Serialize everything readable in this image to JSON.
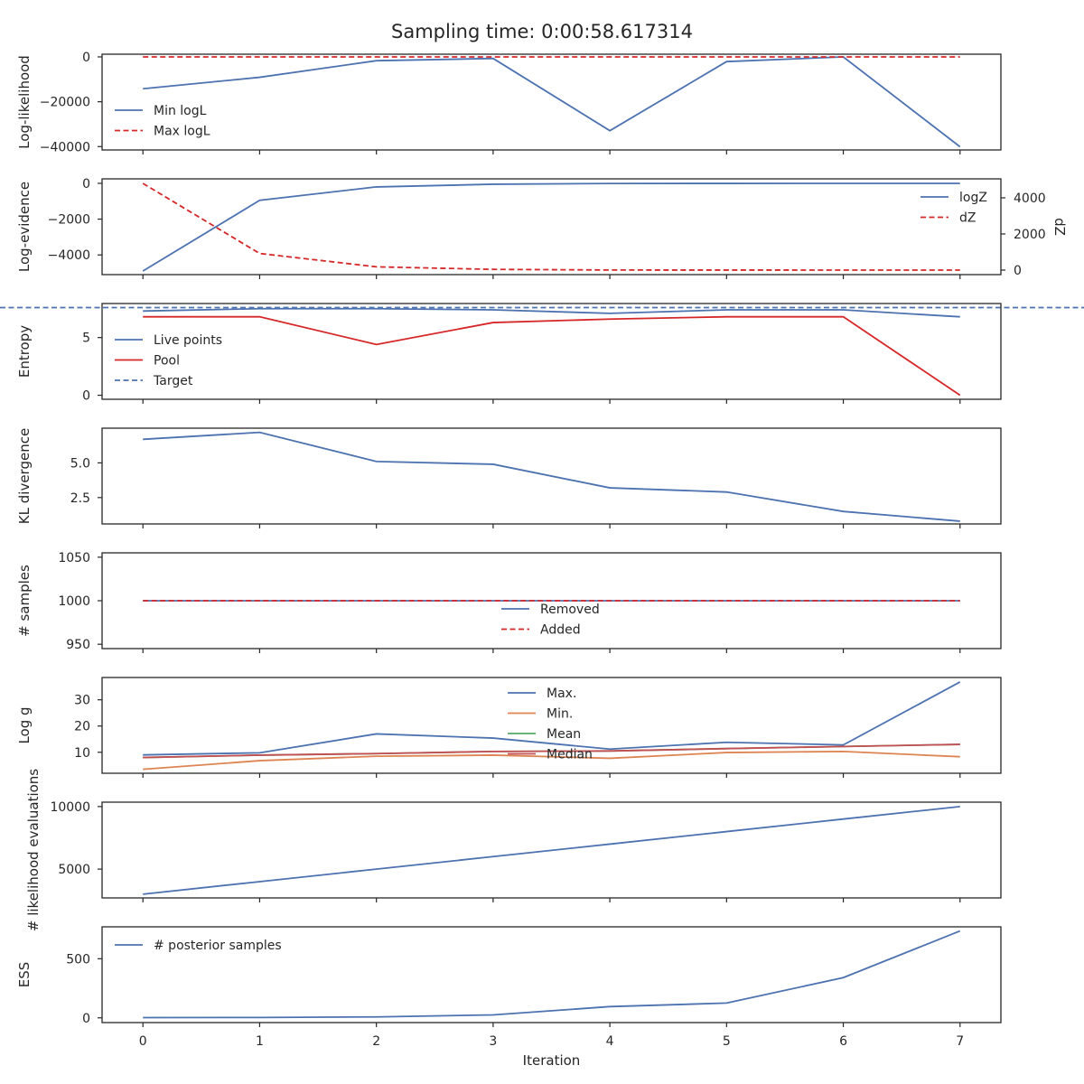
{
  "title": "Sampling time: 0:00:58.617314",
  "colors": {
    "blue": "#4c72b0",
    "red": "#d62728",
    "orange": "#dd8452",
    "green": "#55a868",
    "brown": "#c44e52",
    "axes": "#262626"
  },
  "chart_data": [
    {
      "type": "line",
      "ylabel": "Log-likelihood",
      "x": [
        0,
        1,
        2,
        3,
        4,
        5,
        6,
        7
      ],
      "xlim": [
        -0.35,
        7.35
      ],
      "ylim": [
        -41500,
        1200
      ],
      "yticks": [
        0,
        -20000,
        -40000
      ],
      "ytick_labels": [
        "0",
        "−20000",
        "−40000"
      ],
      "legend": {
        "placement": "center-left"
      },
      "series": [
        {
          "name": "Min logL",
          "color": "#4c72b0",
          "dash": false,
          "values": [
            -14200,
            -9100,
            -1700,
            -700,
            -32900,
            -2100,
            0,
            -40100
          ]
        },
        {
          "name": "Max logL",
          "color": "#d62728",
          "dash": true,
          "values": [
            0,
            0,
            0,
            0,
            0,
            0,
            0,
            0
          ]
        }
      ]
    },
    {
      "type": "line",
      "ylabel": "Log-evidence",
      "y2label": "dZ",
      "x": [
        0,
        1,
        2,
        3,
        4,
        5,
        6,
        7
      ],
      "xlim": [
        -0.35,
        7.35
      ],
      "ylim": [
        -5100,
        250
      ],
      "yticks": [
        0,
        -2000,
        -4000
      ],
      "ytick_labels": [
        "0",
        "−2000",
        "−4000"
      ],
      "y2lim": [
        -250,
        5050
      ],
      "y2ticks": [
        0,
        2000,
        4000
      ],
      "y2tick_labels": [
        "0",
        "2000",
        "4000"
      ],
      "legend": {
        "placement": "top-right"
      },
      "series": [
        {
          "name": "logZ",
          "color": "#4c72b0",
          "dash": false,
          "axis": "left",
          "values": [
            -4900,
            -950,
            -200,
            -50,
            -10,
            -5,
            -2,
            -1
          ]
        },
        {
          "name": "dZ",
          "color": "#d62728",
          "dash": true,
          "axis": "right",
          "values": [
            4800,
            920,
            180,
            40,
            5,
            3,
            1,
            0
          ]
        }
      ]
    },
    {
      "type": "line",
      "ylabel": "Entropy",
      "x": [
        0,
        1,
        2,
        3,
        4,
        5,
        6,
        7
      ],
      "xlim": [
        -0.35,
        7.35
      ],
      "ylim": [
        -0.35,
        7.95
      ],
      "yticks": [
        0,
        5
      ],
      "ytick_labels": [
        "0",
        "5"
      ],
      "legend": {
        "placement": "center-left"
      },
      "series": [
        {
          "name": "Live points",
          "color": "#4c72b0",
          "dash": false,
          "values": [
            7.3,
            7.5,
            7.5,
            7.4,
            7.1,
            7.4,
            7.4,
            6.8
          ]
        },
        {
          "name": "Pool",
          "color": "#d62728",
          "dash": false,
          "values": [
            6.8,
            6.8,
            4.4,
            6.3,
            6.6,
            6.8,
            6.8,
            0.0
          ]
        },
        {
          "name": "Target",
          "color": "#4c72b0",
          "dash": true,
          "hline": 7.6
        }
      ]
    },
    {
      "type": "line",
      "ylabel": "KL divergence",
      "x": [
        0,
        1,
        2,
        3,
        4,
        5,
        6,
        7
      ],
      "xlim": [
        -0.35,
        7.35
      ],
      "ylim": [
        0.6,
        7.5
      ],
      "yticks": [
        2.5,
        5.0
      ],
      "ytick_labels": [
        "2.5",
        "5.0"
      ],
      "series": [
        {
          "color": "#4c72b0",
          "dash": false,
          "values": [
            6.7,
            7.2,
            5.1,
            4.9,
            3.2,
            2.9,
            1.5,
            0.8
          ]
        }
      ]
    },
    {
      "type": "line",
      "ylabel": "# samples",
      "x": [
        0,
        1,
        2,
        3,
        4,
        5,
        6,
        7
      ],
      "xlim": [
        -0.35,
        7.35
      ],
      "ylim": [
        945,
        1055
      ],
      "yticks": [
        950,
        1000,
        1050
      ],
      "ytick_labels": [
        "950",
        "1000",
        "1050"
      ],
      "legend": {
        "placement": "lower-center"
      },
      "series": [
        {
          "name": "Removed",
          "color": "#4c72b0",
          "dash": false,
          "values": [
            1000,
            1000,
            1000,
            1000,
            1000,
            1000,
            1000,
            1000
          ]
        },
        {
          "name": "Added",
          "color": "#d62728",
          "dash": true,
          "values": [
            1000,
            1000,
            1000,
            1000,
            1000,
            1000,
            1000,
            1000
          ]
        }
      ]
    },
    {
      "type": "line",
      "ylabel": "Log g",
      "x": [
        0,
        1,
        2,
        3,
        4,
        5,
        6,
        7
      ],
      "xlim": [
        -0.35,
        7.35
      ],
      "ylim": [
        2,
        38.5
      ],
      "yticks": [
        10,
        20,
        30
      ],
      "ytick_labels": [
        "10",
        "20",
        "30"
      ],
      "legend": {
        "placement": "upper-center"
      },
      "series": [
        {
          "name": "Max.",
          "color": "#4c72b0",
          "dash": false,
          "values": [
            9.0,
            9.8,
            17.0,
            15.4,
            11.2,
            13.8,
            12.8,
            36.8
          ]
        },
        {
          "name": "Min.",
          "color": "#dd8452",
          "dash": false,
          "values": [
            3.5,
            6.8,
            8.5,
            8.9,
            7.7,
            9.9,
            10.3,
            8.3
          ]
        },
        {
          "name": "Mean",
          "color": "#55a868",
          "dash": false,
          "values": [
            8.0,
            8.9,
            9.5,
            10.3,
            10.5,
            11.4,
            12.2,
            13.0
          ]
        },
        {
          "name": "Median",
          "color": "#c44e52",
          "dash": false,
          "values": [
            8.0,
            8.9,
            9.5,
            10.3,
            10.5,
            11.4,
            12.2,
            13.0
          ]
        }
      ]
    },
    {
      "type": "line",
      "ylabel": "# likelihood evaluations",
      "x": [
        0,
        1,
        2,
        3,
        4,
        5,
        6,
        7
      ],
      "xlim": [
        -0.35,
        7.35
      ],
      "ylim": [
        2700,
        10350
      ],
      "yticks": [
        5000,
        10000
      ],
      "ytick_labels": [
        "5000",
        "10000"
      ],
      "series": [
        {
          "color": "#4c72b0",
          "dash": false,
          "values": [
            3000,
            4000,
            5000,
            6000,
            7000,
            8000,
            9000,
            10000
          ]
        }
      ]
    },
    {
      "type": "line",
      "ylabel": "ESS",
      "xlabel": "Iteration",
      "x": [
        0,
        1,
        2,
        3,
        4,
        5,
        6,
        7
      ],
      "xticks": [
        0,
        1,
        2,
        3,
        4,
        5,
        6,
        7
      ],
      "xlim": [
        -0.35,
        7.35
      ],
      "ylim": [
        -40,
        770
      ],
      "yticks": [
        0,
        500
      ],
      "ytick_labels": [
        "0",
        "500"
      ],
      "legend": {
        "placement": "top-left"
      },
      "series": [
        {
          "name": "# posterior samples",
          "color": "#4c72b0",
          "dash": false,
          "values": [
            2,
            3,
            8,
            25,
            95,
            125,
            340,
            735
          ]
        }
      ]
    }
  ]
}
